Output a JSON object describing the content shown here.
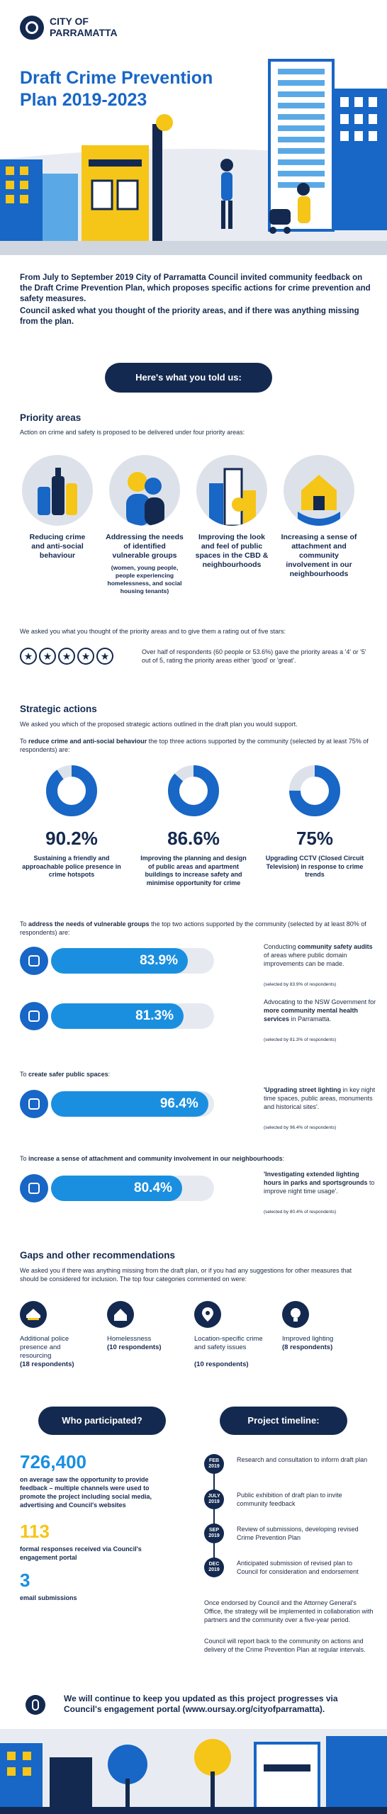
{
  "header": {
    "logo_text": "CITY OF PARRAMATTA",
    "title_line1": "Draft Crime Prevention",
    "title_line2": "Plan 2019-2023"
  },
  "intro": {
    "paragraph": "From July to September 2019 City of Parramatta Council invited community feedback on the Draft Crime Prevention Plan, which proposes specific actions for crime prevention and safety measures.",
    "paragraph_bold": "Council asked what you thought of the priority areas, and if there was anything missing from the plan."
  },
  "told_us_button": "Here's what you told us:",
  "priority": {
    "heading": "Priority areas",
    "intro": "Action on crime and safety is proposed to be delivered under four priority areas:",
    "items": [
      {
        "title": "Reducing crime and anti-social behaviour",
        "sub": "",
        "icon": "bottles-icon"
      },
      {
        "title": "Addressing the needs of identified vulnerable groups",
        "sub": "(women, young people, people experiencing homelessness, and social housing tenants)",
        "icon": "people-icon"
      },
      {
        "title": "Improving the look and feel of public spaces in the CBD & neighbourhoods",
        "sub": "",
        "icon": "buildings-icon"
      },
      {
        "title": "Increasing a sense of attachment and community involvement in our neighbourhoods",
        "sub": "",
        "icon": "house-hands-icon"
      }
    ],
    "rating_intro": "We asked you what you thought of the priority areas and to give them a rating out of five stars:",
    "rating_text": "Over half of respondents (60 people or 53.6%) gave the priority areas a '4' or '5' out of 5, rating the priority areas either 'good' or 'great'.",
    "stars": 5
  },
  "strategic": {
    "heading": "Strategic actions",
    "intro": "We asked you which of the proposed strategic actions outlined in the draft plan you would support.",
    "crime_intro_pre": "To ",
    "crime_intro_bold": "reduce crime and anti-social behaviour",
    "crime_intro_post": " the top three actions supported by the community (selected by at least 75% of respondents) are:",
    "vuln_intro_pre": "To ",
    "vuln_intro_bold": "address the needs of vulnerable groups",
    "vuln_intro_post": " the top two actions supported by the community (selected by at least 80% of respondents) are:",
    "safer_intro_pre": "To ",
    "safer_intro_bold": "create safer public spaces",
    "safer_intro_post": ":",
    "attach_intro_pre": "To ",
    "attach_intro_bold": "increase a sense of attachment and community involvement in our neighbourhoods",
    "attach_intro_post": ":"
  },
  "chart_data": [
    {
      "type": "pie",
      "values": [
        90.2,
        86.6,
        75
      ],
      "labels": [
        "Sustaining a friendly and approachable police presence in crime hotspots",
        "Improving the planning and design of public areas and apartment buildings to increase safety and minimise opportunity for crime",
        "Upgrading CCTV (Closed Circuit Television) in response to crime trends"
      ],
      "display": [
        "90.2%",
        "86.6%",
        "75%"
      ]
    },
    {
      "type": "bar",
      "values": [
        83.9,
        81.3,
        96.4,
        80.4
      ],
      "display": [
        "83.9%",
        "81.3%",
        "96.4%",
        "80.4%"
      ],
      "ylim": [
        0,
        100
      ]
    }
  ],
  "bars": [
    {
      "pre": "Conducting ",
      "bold": "community safety audits",
      "post": " of areas where public domain improvements can be made.",
      "note": "(selected by 83.9% of respondents)",
      "icon": "checklist-icon"
    },
    {
      "pre": "Advocating to the NSW Government for ",
      "bold": "more community mental health services",
      "post": " in Parramatta.",
      "note": "(selected by 81.3% of respondents)",
      "icon": "head-icon"
    },
    {
      "pre": "",
      "bold": "'Upgrading street lighting",
      "post": " in key night time spaces, public areas, monuments and historical sites'.",
      "note": "(selected by 96.4% of respondents)",
      "icon": "lamp-icon"
    },
    {
      "pre": "",
      "bold": "'Investigating extended lighting hours in parks and sportsgrounds",
      "post": " to improve night time usage'.",
      "note": "(selected by 80.4% of respondents)",
      "icon": "ball-icon"
    }
  ],
  "gaps": {
    "heading": "Gaps and other recommendations",
    "intro": "We asked you if there was anything missing from the draft plan, or if you had any suggestions for other measures that should be considered for inclusion. The top four categories commented on were:",
    "items": [
      {
        "label": "Additional police presence and resourcing",
        "count": "(18 respondents)",
        "icon": "police-cap-icon"
      },
      {
        "label": "Homelessness",
        "count": "(10 respondents)",
        "icon": "home-icon"
      },
      {
        "label": "Location-specific crime and safety issues",
        "count": "(10 respondents)",
        "icon": "location-pin-icon"
      },
      {
        "label": "Improved lighting",
        "count": "(8 respondents)",
        "icon": "lightbulb-icon"
      }
    ]
  },
  "participation": {
    "button": "Who participated?",
    "stat1": "726,400",
    "stat1_text": "on average saw the opportunity to provide feedback – multiple channels were used to promote the project including social media, advertising and Council's websites",
    "stat2": "113",
    "stat2_text": "formal responses received via Council's engagement portal",
    "stat3": "3",
    "stat3_text": "email submissions"
  },
  "timeline": {
    "button": "Project timeline:",
    "items": [
      {
        "month": "FEB",
        "year": "2019",
        "text": "Research and consultation to inform draft plan"
      },
      {
        "month": "JULY",
        "year": "2019",
        "text": "Public exhibition of draft plan to invite community feedback"
      },
      {
        "month": "SEP",
        "year": "2019",
        "text": "Review of submissions, developing revised Crime Prevention Plan"
      },
      {
        "month": "DEC",
        "year": "2019",
        "text": "Anticipated submission of revised plan to Council for consideration and endorsement"
      }
    ],
    "after1": "Once endorsed by Council and the Attorney General's Office, the strategy will be implemented in collaboration with partners and the community over a five-year period.",
    "after2": "Council will report back to the community on actions and delivery of the Crime Prevention Plan at regular intervals."
  },
  "footer": {
    "text": "We will continue to keep you updated as this project progresses via Council's engagement portal (www.oursay.org/cityofparramatta)."
  },
  "colors": {
    "navy": "#14294f",
    "blue": "#1866c6",
    "light_blue": "#1a8fe0",
    "yellow": "#f5c518",
    "gray": "#dde2ea"
  }
}
